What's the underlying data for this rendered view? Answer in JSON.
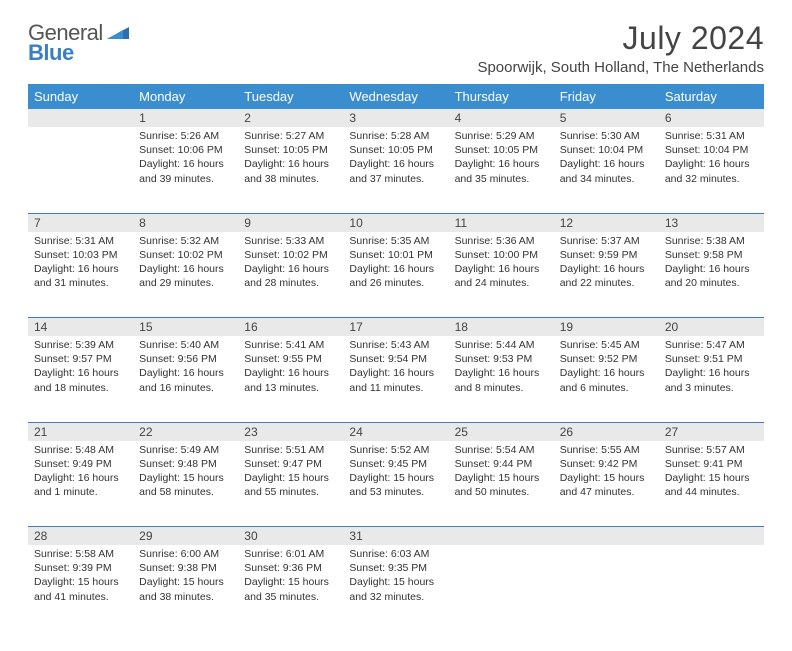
{
  "brand": {
    "part1": "General",
    "part2": "Blue"
  },
  "title": "July 2024",
  "location": "Spoorwijk, South Holland, The Netherlands",
  "colors": {
    "header_bg": "#3a8dce",
    "accent": "#3a7fc4",
    "daynum_bg": "#e9e9e9",
    "text": "#333333",
    "page_bg": "#ffffff"
  },
  "typography": {
    "title_fontsize": 32,
    "location_fontsize": 15,
    "header_fontsize": 13,
    "daynum_fontsize": 12,
    "body_fontsize": 10.5
  },
  "dow": [
    "Sunday",
    "Monday",
    "Tuesday",
    "Wednesday",
    "Thursday",
    "Friday",
    "Saturday"
  ],
  "weeks": [
    [
      null,
      {
        "n": "1",
        "sr": "5:26 AM",
        "ss": "10:06 PM",
        "dl": "16 hours and 39 minutes."
      },
      {
        "n": "2",
        "sr": "5:27 AM",
        "ss": "10:05 PM",
        "dl": "16 hours and 38 minutes."
      },
      {
        "n": "3",
        "sr": "5:28 AM",
        "ss": "10:05 PM",
        "dl": "16 hours and 37 minutes."
      },
      {
        "n": "4",
        "sr": "5:29 AM",
        "ss": "10:05 PM",
        "dl": "16 hours and 35 minutes."
      },
      {
        "n": "5",
        "sr": "5:30 AM",
        "ss": "10:04 PM",
        "dl": "16 hours and 34 minutes."
      },
      {
        "n": "6",
        "sr": "5:31 AM",
        "ss": "10:04 PM",
        "dl": "16 hours and 32 minutes."
      }
    ],
    [
      {
        "n": "7",
        "sr": "5:31 AM",
        "ss": "10:03 PM",
        "dl": "16 hours and 31 minutes."
      },
      {
        "n": "8",
        "sr": "5:32 AM",
        "ss": "10:02 PM",
        "dl": "16 hours and 29 minutes."
      },
      {
        "n": "9",
        "sr": "5:33 AM",
        "ss": "10:02 PM",
        "dl": "16 hours and 28 minutes."
      },
      {
        "n": "10",
        "sr": "5:35 AM",
        "ss": "10:01 PM",
        "dl": "16 hours and 26 minutes."
      },
      {
        "n": "11",
        "sr": "5:36 AM",
        "ss": "10:00 PM",
        "dl": "16 hours and 24 minutes."
      },
      {
        "n": "12",
        "sr": "5:37 AM",
        "ss": "9:59 PM",
        "dl": "16 hours and 22 minutes."
      },
      {
        "n": "13",
        "sr": "5:38 AM",
        "ss": "9:58 PM",
        "dl": "16 hours and 20 minutes."
      }
    ],
    [
      {
        "n": "14",
        "sr": "5:39 AM",
        "ss": "9:57 PM",
        "dl": "16 hours and 18 minutes."
      },
      {
        "n": "15",
        "sr": "5:40 AM",
        "ss": "9:56 PM",
        "dl": "16 hours and 16 minutes."
      },
      {
        "n": "16",
        "sr": "5:41 AM",
        "ss": "9:55 PM",
        "dl": "16 hours and 13 minutes."
      },
      {
        "n": "17",
        "sr": "5:43 AM",
        "ss": "9:54 PM",
        "dl": "16 hours and 11 minutes."
      },
      {
        "n": "18",
        "sr": "5:44 AM",
        "ss": "9:53 PM",
        "dl": "16 hours and 8 minutes."
      },
      {
        "n": "19",
        "sr": "5:45 AM",
        "ss": "9:52 PM",
        "dl": "16 hours and 6 minutes."
      },
      {
        "n": "20",
        "sr": "5:47 AM",
        "ss": "9:51 PM",
        "dl": "16 hours and 3 minutes."
      }
    ],
    [
      {
        "n": "21",
        "sr": "5:48 AM",
        "ss": "9:49 PM",
        "dl": "16 hours and 1 minute."
      },
      {
        "n": "22",
        "sr": "5:49 AM",
        "ss": "9:48 PM",
        "dl": "15 hours and 58 minutes."
      },
      {
        "n": "23",
        "sr": "5:51 AM",
        "ss": "9:47 PM",
        "dl": "15 hours and 55 minutes."
      },
      {
        "n": "24",
        "sr": "5:52 AM",
        "ss": "9:45 PM",
        "dl": "15 hours and 53 minutes."
      },
      {
        "n": "25",
        "sr": "5:54 AM",
        "ss": "9:44 PM",
        "dl": "15 hours and 50 minutes."
      },
      {
        "n": "26",
        "sr": "5:55 AM",
        "ss": "9:42 PM",
        "dl": "15 hours and 47 minutes."
      },
      {
        "n": "27",
        "sr": "5:57 AM",
        "ss": "9:41 PM",
        "dl": "15 hours and 44 minutes."
      }
    ],
    [
      {
        "n": "28",
        "sr": "5:58 AM",
        "ss": "9:39 PM",
        "dl": "15 hours and 41 minutes."
      },
      {
        "n": "29",
        "sr": "6:00 AM",
        "ss": "9:38 PM",
        "dl": "15 hours and 38 minutes."
      },
      {
        "n": "30",
        "sr": "6:01 AM",
        "ss": "9:36 PM",
        "dl": "15 hours and 35 minutes."
      },
      {
        "n": "31",
        "sr": "6:03 AM",
        "ss": "9:35 PM",
        "dl": "15 hours and 32 minutes."
      },
      null,
      null,
      null
    ]
  ],
  "labels": {
    "sunrise": "Sunrise: ",
    "sunset": "Sunset: ",
    "daylight": "Daylight: "
  }
}
